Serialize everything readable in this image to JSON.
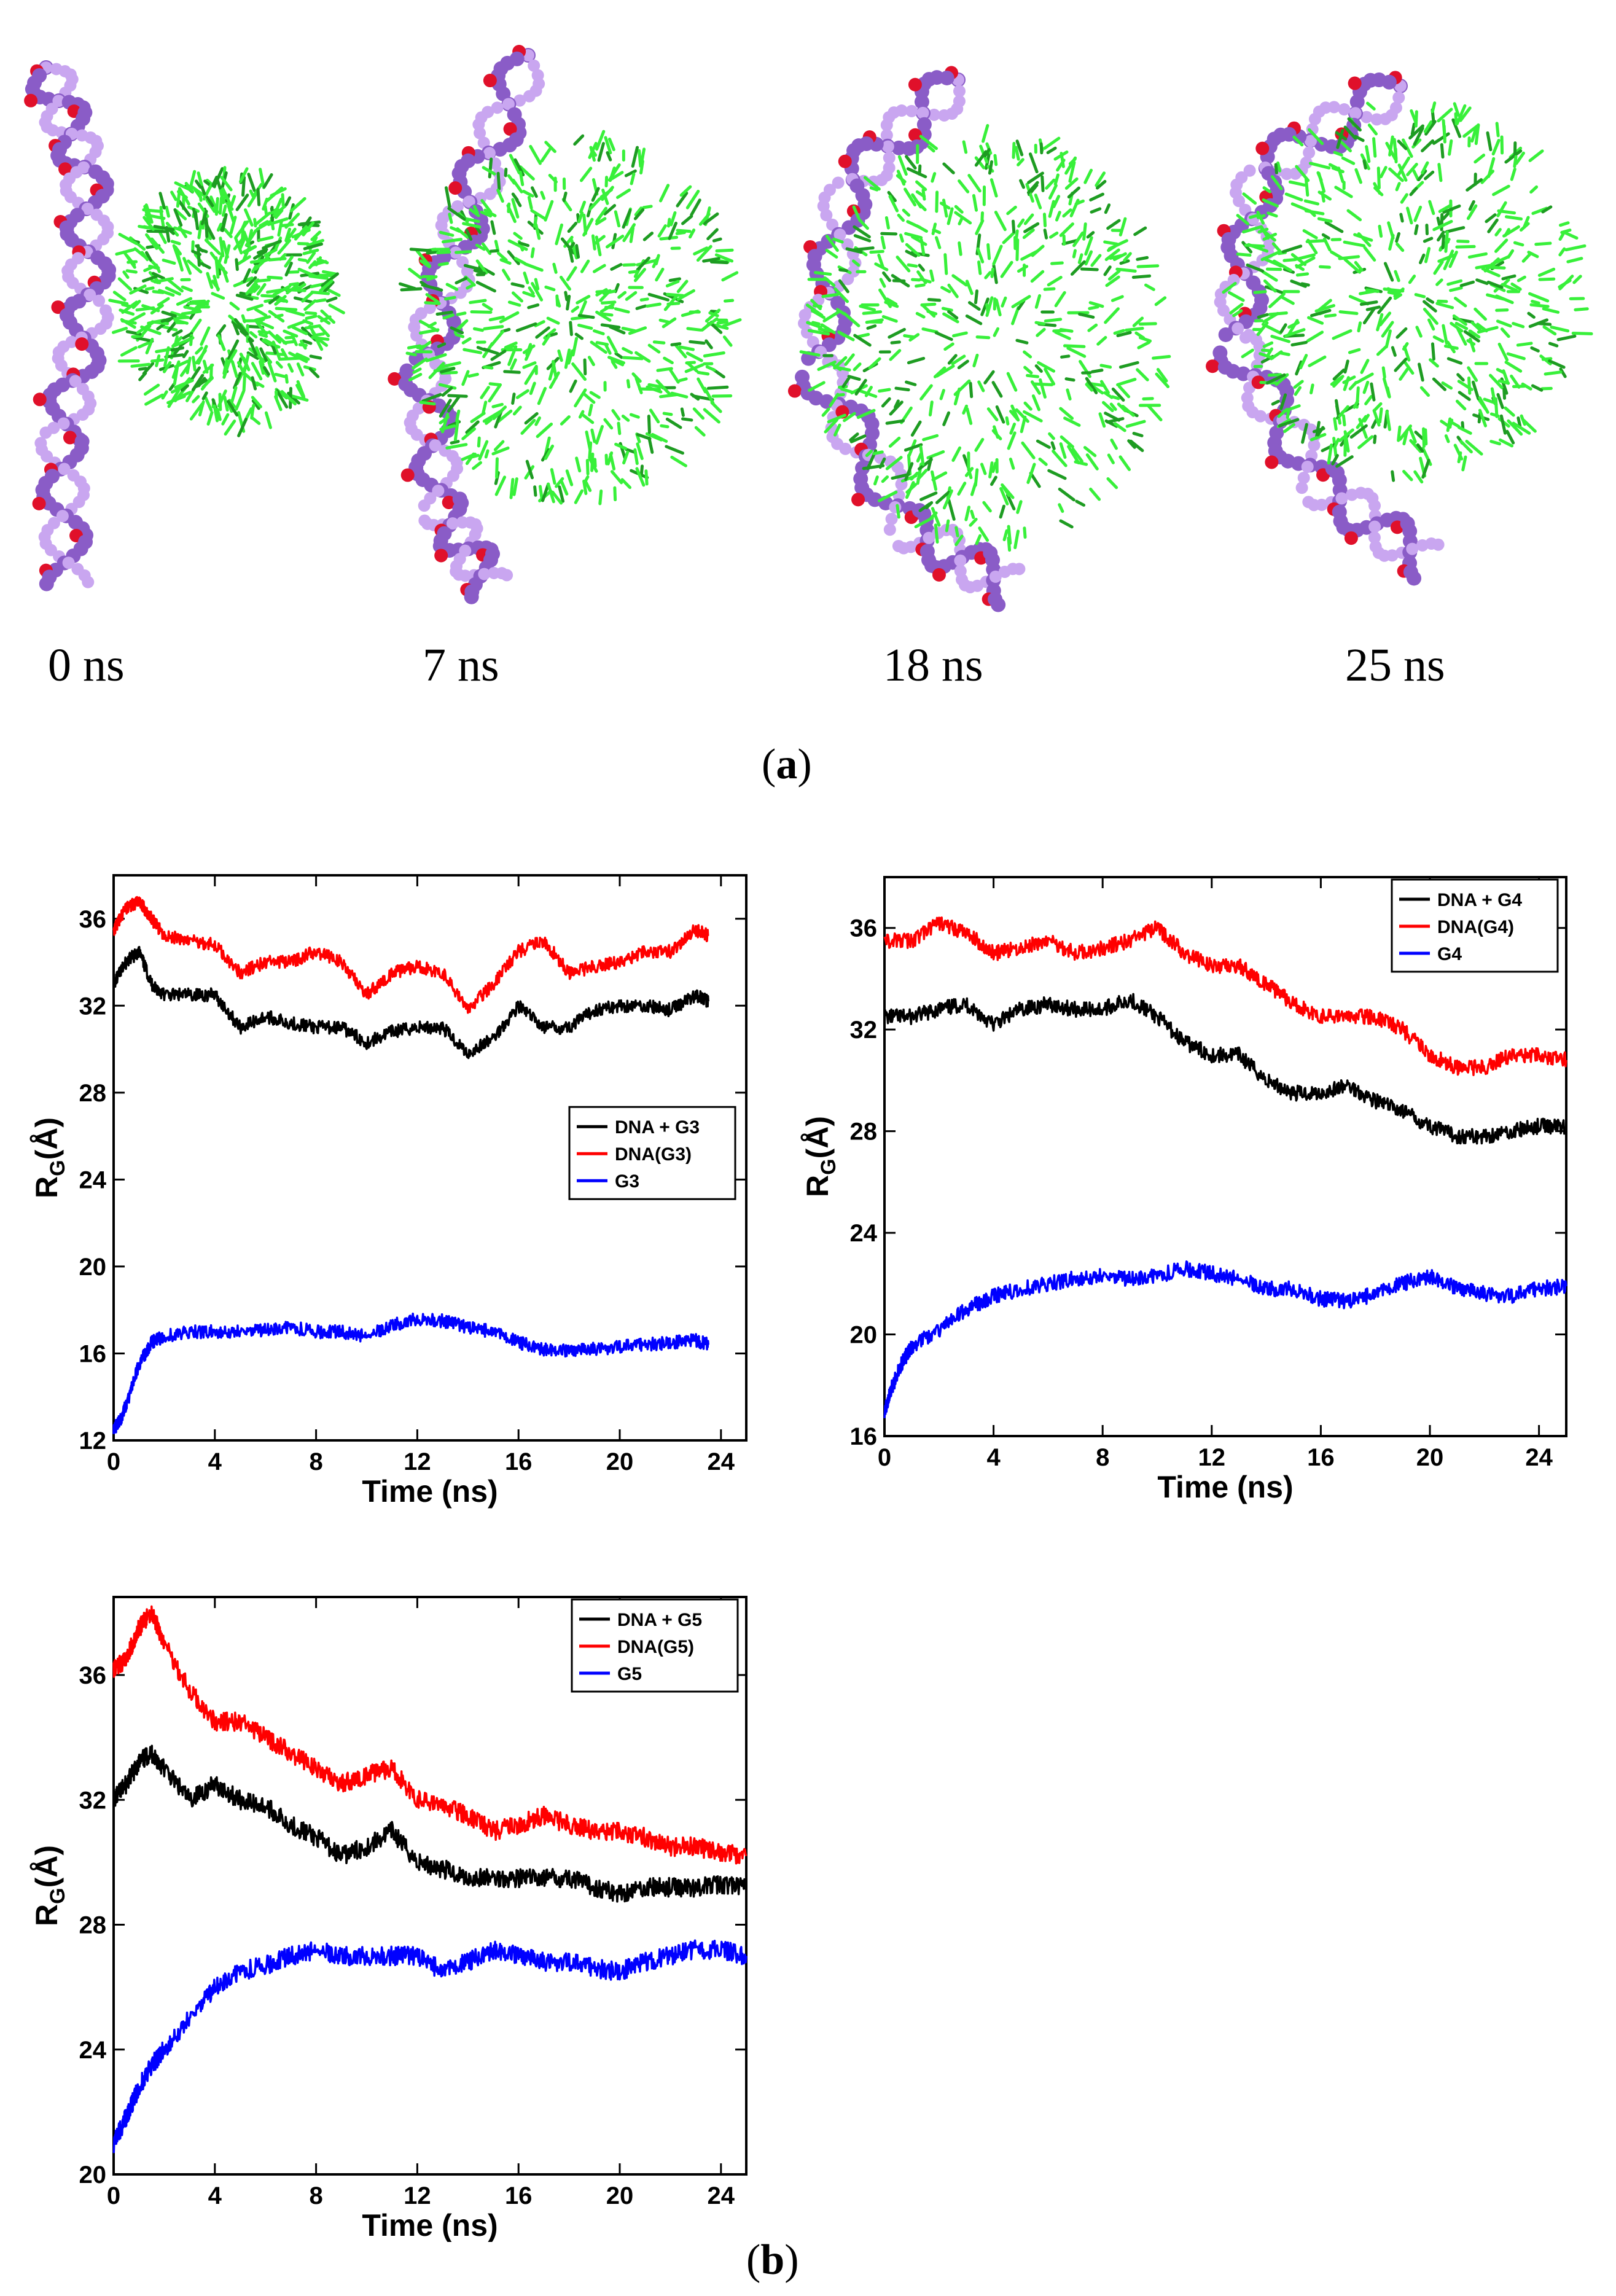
{
  "figure": {
    "panel_a_label": "a",
    "panel_b_label": "b",
    "snapshot_times": [
      "0 ns",
      "7 ns",
      "18 ns",
      "25 ns"
    ],
    "colors": {
      "dna": "#8a5cc7",
      "dna_light": "#c9a6f0",
      "phosphate": "#e0102a",
      "dendrimer": "#38f03a",
      "dendrimer_dark": "#1e9c22"
    }
  },
  "chart_data": [
    {
      "type": "line",
      "id": "g3",
      "ylabel": "R_G(Å)",
      "xlabel": "Time (ns)",
      "xlim": [
        0,
        25
      ],
      "ylim": [
        12,
        38
      ],
      "xticks": [
        0,
        4,
        8,
        12,
        16,
        20,
        24
      ],
      "yticks": [
        12,
        16,
        20,
        24,
        28,
        32,
        36
      ],
      "legend_position": "center-right",
      "series": [
        {
          "name": "DNA + G3",
          "color": "#000000",
          "x": [
            0,
            0.5,
            1,
            1.5,
            2,
            3,
            4,
            5,
            6,
            7,
            8,
            9,
            10,
            11,
            12,
            13,
            14,
            15,
            16,
            17,
            18,
            19,
            20,
            21,
            22,
            23,
            23.5
          ],
          "y": [
            33,
            34,
            34.5,
            33,
            32.5,
            32.5,
            32.5,
            31,
            31.5,
            31.2,
            31,
            31,
            30.3,
            30.8,
            31,
            31,
            29.8,
            30.5,
            32,
            31,
            31,
            31.8,
            32,
            32,
            31.8,
            32.5,
            32.2
          ]
        },
        {
          "name": "DNA(G3)",
          "color": "#ff0000",
          "x": [
            0,
            0.5,
            1,
            1.5,
            2,
            3,
            4,
            5,
            6,
            7,
            8,
            9,
            10,
            11,
            12,
            13,
            14,
            15,
            16,
            17,
            18,
            19,
            20,
            21,
            22,
            23,
            23.5
          ],
          "y": [
            35.5,
            36.5,
            36.8,
            36,
            35.2,
            35,
            34.8,
            33.5,
            34,
            34,
            34.5,
            34,
            32.5,
            33.5,
            33.8,
            33.5,
            31.8,
            33,
            34.5,
            35,
            33.5,
            33.8,
            34,
            34.5,
            34.5,
            35.5,
            35.2
          ]
        },
        {
          "name": "G3",
          "color": "#0000ff",
          "x": [
            0,
            0.3,
            0.6,
            1,
            1.5,
            2,
            3,
            4,
            5,
            6,
            7,
            8,
            9,
            10,
            11,
            12,
            13,
            14,
            15,
            16,
            17,
            18,
            19,
            20,
            21,
            22,
            23,
            23.5
          ],
          "y": [
            12.5,
            13,
            14,
            15.5,
            16.5,
            16.8,
            17,
            17,
            17,
            17.1,
            17.2,
            17,
            17,
            16.8,
            17.3,
            17.6,
            17.5,
            17.2,
            17,
            16.5,
            16.2,
            16.1,
            16.2,
            16.3,
            16.4,
            16.5,
            16.6,
            16.4
          ]
        }
      ]
    },
    {
      "type": "line",
      "id": "g4",
      "ylabel": "R_G(Å)",
      "xlabel": "Time (ns)",
      "xlim": [
        0,
        25
      ],
      "ylim": [
        16,
        38
      ],
      "xticks": [
        0,
        4,
        8,
        12,
        16,
        20,
        24
      ],
      "yticks": [
        16,
        20,
        24,
        28,
        32,
        36
      ],
      "legend_position": "top-right",
      "series": [
        {
          "name": "DNA + G4",
          "color": "#000000",
          "x": [
            0,
            1,
            2,
            3,
            4,
            5,
            6,
            7,
            8,
            9,
            10,
            11,
            12,
            13,
            14,
            15,
            16,
            17,
            18,
            19,
            20,
            21,
            22,
            23,
            24,
            25
          ],
          "y": [
            32.5,
            32.5,
            32.8,
            33,
            32.2,
            32.8,
            33,
            32.8,
            32.8,
            33.2,
            32.5,
            31.5,
            31,
            31,
            30,
            29.5,
            29.5,
            29.8,
            29.2,
            28.8,
            28.2,
            27.8,
            27.8,
            28,
            28.2,
            28.2
          ]
        },
        {
          "name": "DNA(G4)",
          "color": "#ff0000",
          "x": [
            0,
            1,
            2,
            3,
            4,
            5,
            6,
            7,
            8,
            9,
            10,
            11,
            12,
            13,
            14,
            15,
            16,
            17,
            18,
            19,
            20,
            21,
            22,
            23,
            24,
            25
          ],
          "y": [
            35.5,
            35.5,
            36.2,
            35.8,
            35,
            35.2,
            35.5,
            35,
            35.2,
            35.5,
            36,
            35,
            34.5,
            34.5,
            33.8,
            33,
            32.5,
            32.5,
            32.5,
            32,
            31,
            30.5,
            30.5,
            31,
            31,
            30.8
          ]
        },
        {
          "name": "G4",
          "color": "#0000ff",
          "x": [
            0,
            0.3,
            0.7,
            1,
            2,
            3,
            4,
            5,
            6,
            7,
            8,
            9,
            10,
            11,
            12,
            13,
            14,
            15,
            16,
            17,
            18,
            19,
            20,
            21,
            22,
            23,
            24,
            25
          ],
          "y": [
            17,
            18,
            19,
            19.5,
            20.2,
            21,
            21.5,
            21.8,
            22,
            22.2,
            22.3,
            22.2,
            22.3,
            22.6,
            22.4,
            22.2,
            21.8,
            21.8,
            21.4,
            21.3,
            21.6,
            22,
            22.3,
            21.8,
            21.6,
            21.5,
            21.8,
            21.9
          ]
        }
      ]
    },
    {
      "type": "line",
      "id": "g5",
      "ylabel": "R_G(Å)",
      "xlabel": "Time (ns)",
      "xlim": [
        0,
        25
      ],
      "ylim": [
        20,
        38.5
      ],
      "xticks": [
        0,
        4,
        8,
        12,
        16,
        20,
        24
      ],
      "yticks": [
        20,
        24,
        28,
        32,
        36
      ],
      "legend_position": "top-right",
      "series": [
        {
          "name": "DNA + G5",
          "color": "#000000",
          "x": [
            0,
            0.5,
            1,
            1.5,
            2,
            3,
            4,
            5,
            6,
            7,
            8,
            9,
            10,
            11,
            12,
            13,
            14,
            15,
            16,
            17,
            18,
            19,
            20,
            21,
            22,
            23,
            24,
            25
          ],
          "y": [
            32,
            32.5,
            33.2,
            33.5,
            33,
            32,
            32.5,
            32,
            31.8,
            31.2,
            30.8,
            30.2,
            30.5,
            31,
            30,
            29.8,
            29.5,
            29.5,
            29.5,
            29.5,
            29.5,
            29.2,
            29,
            29.2,
            29.2,
            29.2,
            29.3,
            29.2
          ]
        },
        {
          "name": "DNA(G5)",
          "color": "#ff0000",
          "x": [
            0,
            0.5,
            1,
            1.5,
            2,
            3,
            4,
            5,
            6,
            7,
            8,
            9,
            10,
            11,
            12,
            13,
            14,
            15,
            16,
            17,
            18,
            19,
            20,
            21,
            22,
            23,
            24,
            25
          ],
          "y": [
            36.2,
            36.5,
            37.5,
            38,
            37,
            35.5,
            34.5,
            34.5,
            34,
            33.5,
            33,
            32.5,
            32.8,
            33,
            32,
            31.8,
            31.5,
            31,
            31.2,
            31.5,
            31.2,
            31,
            31,
            30.8,
            30.5,
            30.5,
            30.3,
            30.2
          ]
        },
        {
          "name": "G5",
          "color": "#0000ff",
          "x": [
            0,
            0.3,
            0.7,
            1,
            1.5,
            2,
            3,
            4,
            5,
            6,
            7,
            8,
            9,
            10,
            11,
            12,
            13,
            14,
            15,
            16,
            17,
            18,
            19,
            20,
            21,
            22,
            23,
            24,
            25
          ],
          "y": [
            21,
            21.5,
            22.2,
            22.8,
            23.5,
            24,
            25,
            26,
            26.5,
            26.7,
            27,
            27.2,
            27,
            27,
            27,
            27,
            26.5,
            26.8,
            27.2,
            27,
            26.8,
            26.8,
            26.6,
            26.5,
            26.8,
            27,
            27.2,
            27.2,
            27
          ]
        }
      ]
    }
  ]
}
